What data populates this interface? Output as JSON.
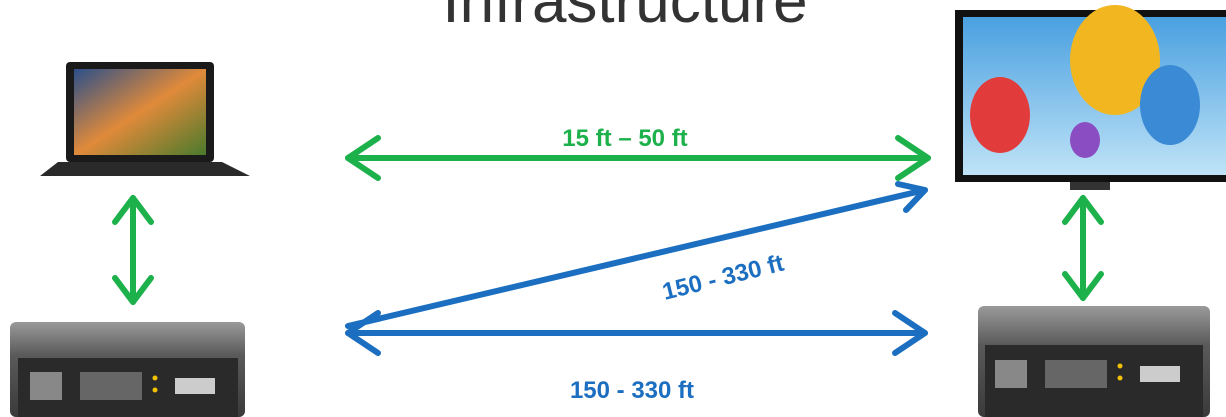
{
  "title": "Infrastructure",
  "links": [
    {
      "label": "15 ft – 50 ft"
    },
    {
      "label": "150 - 330 ft"
    },
    {
      "label": "150 - 330 ft"
    }
  ]
}
